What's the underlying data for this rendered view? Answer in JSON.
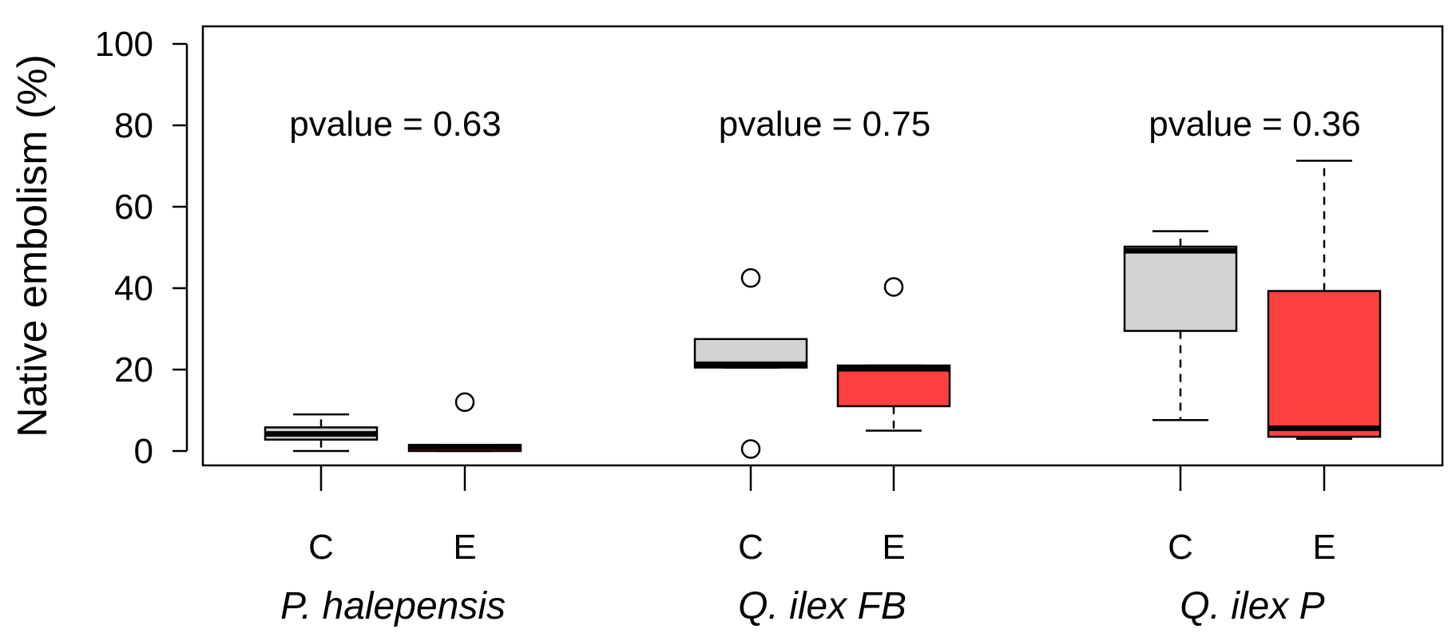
{
  "chart_data": {
    "type": "boxplot",
    "ylabel": "Native embolism (%)",
    "xlabel": "",
    "ylim": [
      -4,
      104
    ],
    "yticks": [
      0,
      20,
      40,
      60,
      80,
      100
    ],
    "grid": false,
    "legend": "none",
    "colors": {
      "C": "#d3d3d3",
      "E": "#ff4040"
    },
    "groups": [
      {
        "name": "P. halepensis",
        "annotation": "pvalue = 0.63",
        "boxes": [
          {
            "label": "C",
            "whisker_low": 0,
            "q1": 2.8,
            "median": 4.2,
            "q3": 5.8,
            "whisker_high": 9,
            "outliers": []
          },
          {
            "label": "E",
            "whisker_low": 0,
            "q1": 0,
            "median": 1,
            "q3": 1.5,
            "whisker_high": 1.5,
            "outliers": [
              12
            ]
          }
        ]
      },
      {
        "name": "Q. ilex FB",
        "annotation": "pvalue = 0.75",
        "boxes": [
          {
            "label": "C",
            "whisker_low": 20.5,
            "q1": 20.5,
            "median": 21.3,
            "q3": 27.5,
            "whisker_high": 27.5,
            "outliers": [
              42.5,
              0.5
            ]
          },
          {
            "label": "E",
            "whisker_low": 5,
            "q1": 11,
            "median": 20.2,
            "q3": 21,
            "whisker_high": 21,
            "outliers": [
              40.3
            ]
          }
        ]
      },
      {
        "name": "Q. ilex P",
        "annotation": "pvalue = 0.36",
        "boxes": [
          {
            "label": "C",
            "whisker_low": 7.6,
            "q1": 29.5,
            "median": 49.2,
            "q3": 50.2,
            "whisker_high": 54,
            "outliers": []
          },
          {
            "label": "E",
            "whisker_low": 3,
            "q1": 3.5,
            "median": 5.6,
            "q3": 39.3,
            "whisker_high": 71.3,
            "outliers": []
          }
        ]
      }
    ]
  }
}
